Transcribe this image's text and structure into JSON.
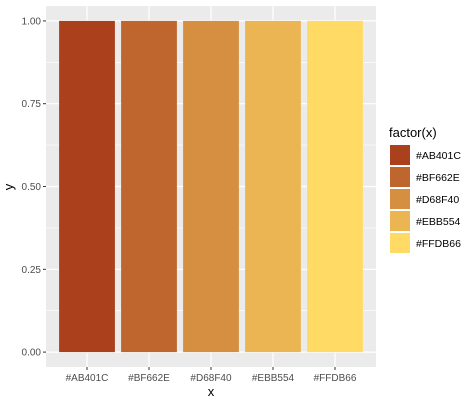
{
  "chart_data": {
    "type": "bar",
    "categories": [
      "#AB401C",
      "#BF662E",
      "#D68F40",
      "#EBB554",
      "#FFDB66"
    ],
    "values": [
      1,
      1,
      1,
      1,
      1
    ],
    "colors": [
      "#AB401C",
      "#BF662E",
      "#D68F40",
      "#EBB554",
      "#FFDB66"
    ],
    "xlabel": "x",
    "ylabel": "y",
    "ylim": [
      0,
      1
    ],
    "yticks": [
      0,
      0.25,
      0.5,
      0.75,
      1
    ],
    "ytick_labels": [
      "0.00",
      "0.25",
      "0.50",
      "0.75",
      "1.00"
    ],
    "grid": true,
    "panel_background": "#EBEBEB",
    "legend": {
      "title": "factor(x)",
      "position": "right",
      "entries": [
        "#AB401C",
        "#BF662E",
        "#D68F40",
        "#EBB554",
        "#FFDB66"
      ]
    }
  }
}
